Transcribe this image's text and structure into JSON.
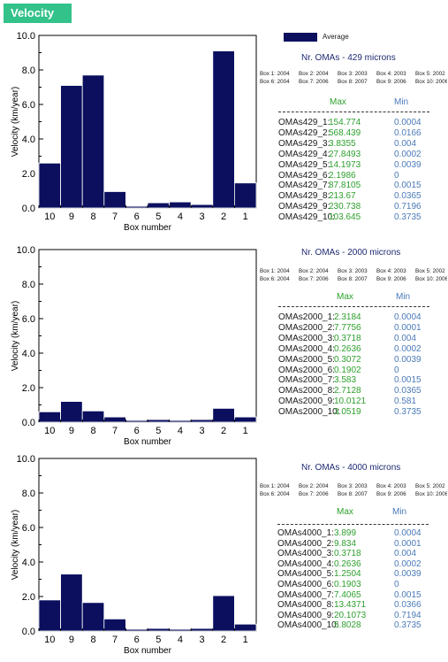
{
  "header": {
    "tab_label": "Velocity"
  },
  "legend": {
    "label": "Average",
    "color": "#0b0f5e"
  },
  "boxes_info": [
    "Box 1: 2004",
    "Box 2: 2004",
    "Box 3: 2003",
    "Box 4: 2003",
    "Box 5: 2002",
    "Box 6: 2004",
    "Box 7: 2006",
    "Box 8: 2007",
    "Box 9: 2006",
    "Box 10: 2006"
  ],
  "table_headers": {
    "max": "Max",
    "min": "Min"
  },
  "chart_data": [
    {
      "type": "bar",
      "ylabel": "Velocity (km/year)",
      "xlabel": "Box number",
      "ylim": [
        0,
        10
      ],
      "yticks": [
        "0.0",
        "2.0",
        "4.0",
        "6.0",
        "8.0",
        "10.0"
      ],
      "categories": [
        "10",
        "9",
        "8",
        "7",
        "6",
        "5",
        "4",
        "3",
        "2",
        "1"
      ],
      "series": [
        {
          "name": "Average",
          "values": [
            2.6,
            7.1,
            7.7,
            0.95,
            0.1,
            0.3,
            0.35,
            0.2,
            9.1,
            1.45
          ]
        }
      ],
      "panel": {
        "title": "Nr. OMAs - 429 microns",
        "rows": [
          {
            "name": "OMAs429_1:",
            "max": "154.774",
            "min": "0.0004"
          },
          {
            "name": "OMAs429_2:",
            "max": "568.439",
            "min": "0.0166"
          },
          {
            "name": "OMAs429_3:",
            "max": "3.8355",
            "min": "0.004"
          },
          {
            "name": "OMAs429_4:",
            "max": "27.8493",
            "min": "0.0002"
          },
          {
            "name": "OMAs429_5:",
            "max": "14.1973",
            "min": "0.0039"
          },
          {
            "name": "OMAs429_6:",
            "max": "2.1986",
            "min": "0"
          },
          {
            "name": "OMAs429_7:",
            "max": "87.8105",
            "min": "0.0015"
          },
          {
            "name": "OMAs429_8:",
            "max": "213.67",
            "min": "0.0365"
          },
          {
            "name": "OMAs429_9:",
            "max": "230.738",
            "min": "0.7196"
          },
          {
            "name": "OMAs429_10:",
            "max": "103.645",
            "min": "0.3735"
          }
        ]
      }
    },
    {
      "type": "bar",
      "ylabel": "Velocity (km/year)",
      "xlabel": "Box number",
      "ylim": [
        0,
        10
      ],
      "yticks": [
        "0.0",
        "2.0",
        "4.0",
        "6.0",
        "8.0",
        "10.0"
      ],
      "categories": [
        "10",
        "9",
        "8",
        "7",
        "6",
        "5",
        "4",
        "3",
        "2",
        "1"
      ],
      "series": [
        {
          "name": "Average",
          "values": [
            0.6,
            1.2,
            0.65,
            0.3,
            0.1,
            0.15,
            0.1,
            0.15,
            0.8,
            0.3
          ]
        }
      ],
      "panel": {
        "title": "Nr. OMAs - 2000 microns",
        "rows": [
          {
            "name": "OMAs2000_1:",
            "max": "2.3184",
            "min": "0.0004"
          },
          {
            "name": "OMAs2000_2:",
            "max": "7.7756",
            "min": "0.0001"
          },
          {
            "name": "OMAs2000_3:",
            "max": "0.3718",
            "min": "0.004"
          },
          {
            "name": "OMAs2000_4:",
            "max": "0.2636",
            "min": "0.0002"
          },
          {
            "name": "OMAs2000_5:",
            "max": "0.3072",
            "min": "0.0039"
          },
          {
            "name": "OMAs2000_6:",
            "max": "0.1902",
            "min": "0"
          },
          {
            "name": "OMAs2000_7:",
            "max": "3.583",
            "min": "0.0015"
          },
          {
            "name": "OMAs2000_8:",
            "max": "2.7128",
            "min": "0.0365"
          },
          {
            "name": "OMAs2000_9:",
            "max": "10.0121",
            "min": "0.581"
          },
          {
            "name": "OMAs2000_10:",
            "max": "3.0519",
            "min": "0.3735"
          }
        ]
      }
    },
    {
      "type": "bar",
      "ylabel": "Velocity (km/year)",
      "xlabel": "Box number",
      "ylim": [
        0,
        10
      ],
      "yticks": [
        "0.0",
        "2.0",
        "4.0",
        "6.0",
        "8.0",
        "10.0"
      ],
      "categories": [
        "10",
        "9",
        "8",
        "7",
        "6",
        "5",
        "4",
        "3",
        "2",
        "1"
      ],
      "series": [
        {
          "name": "Average",
          "values": [
            1.8,
            3.3,
            1.65,
            0.7,
            0.1,
            0.15,
            0.1,
            0.15,
            2.05,
            0.4
          ]
        }
      ],
      "panel": {
        "title": "Nr. OMAs - 4000 microns",
        "rows": [
          {
            "name": "OMAs4000_1:",
            "max": "3.899",
            "min": "0.0004"
          },
          {
            "name": "OMAs4000_2:",
            "max": "9.834",
            "min": "0.0001"
          },
          {
            "name": "OMAs4000_3:",
            "max": "0.3718",
            "min": "0.004"
          },
          {
            "name": "OMAs4000_4:",
            "max": "0.2636",
            "min": "0.0002"
          },
          {
            "name": "OMAs4000_5:",
            "max": "1.2504",
            "min": "0.0039"
          },
          {
            "name": "OMAs4000_6:",
            "max": "0.1903",
            "min": "0"
          },
          {
            "name": "OMAs4000_7:",
            "max": "7.4065",
            "min": "0.0015"
          },
          {
            "name": "OMAs4000_8:",
            "max": "13.4371",
            "min": "0.0366"
          },
          {
            "name": "OMAs4000_9:",
            "max": "20.1073",
            "min": "0.7194"
          },
          {
            "name": "OMAs4000_10:",
            "max": "5.8028",
            "min": "0.3735"
          }
        ]
      }
    }
  ]
}
